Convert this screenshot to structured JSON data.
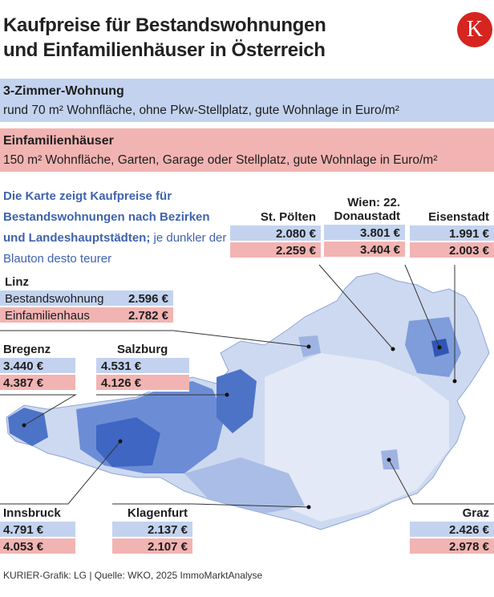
{
  "title": {
    "line1": "Kaufpreise für Bestandswohnungen",
    "line2": "und Einfamilienhäuser in Österreich"
  },
  "logo": {
    "letter": "K",
    "color": "#d6241f"
  },
  "legend": {
    "apartment": {
      "heading": "3-Zimmer-Wohnung",
      "description": "rund 70 m² Wohnfläche, ohne Pkw-Stellplatz, gute Wohnlage in Euro/m²",
      "color": "#c3d3ef"
    },
    "house": {
      "heading": "Einfamilienhäuser",
      "description": "150 m² Wohnfläche, Garten, Garage oder Stellplatz, gute Wohnlage in Euro/m²",
      "color": "#f2b4b2"
    }
  },
  "intro": {
    "bold": "Die Karte zeigt Kaufpreise für Bestandswohnungen nach Bezirken und Landeshauptstädten;",
    "normal": " je dunkler der Blauton desto teurer"
  },
  "cities": {
    "st_poelten": {
      "name": "St. Pölten",
      "apartment": "2.080 €",
      "house": "2.259 €"
    },
    "wien": {
      "name_line1": "Wien: 22.",
      "name_line2": "Donaustadt",
      "apartment": "3.801 €",
      "house": "3.404 €"
    },
    "eisenstadt": {
      "name": "Eisenstadt",
      "apartment": "1.991 €",
      "house": "2.003 €"
    },
    "linz": {
      "name": "Linz",
      "apartment_label": "Bestandswohnung",
      "apartment": "2.596 €",
      "house_label": "Einfamilienhaus",
      "house": "2.782 €"
    },
    "bregenz": {
      "name": "Bregenz",
      "apartment": "3.440 €",
      "house": "4.387 €"
    },
    "salzburg": {
      "name": "Salzburg",
      "apartment": "4.531 €",
      "house": "4.126 €"
    },
    "innsbruck": {
      "name": "Innsbruck",
      "apartment": "4.791 €",
      "house": "4.053 €"
    },
    "klagenfurt": {
      "name": "Klagenfurt",
      "apartment": "2.137 €",
      "house": "2.107 €"
    },
    "graz": {
      "name": "Graz",
      "apartment": "2.426 €",
      "house": "2.978 €"
    }
  },
  "footer": "KURIER-Grafik: LG | Quelle: WKO, 2025 ImmoMarktAnalyse"
}
